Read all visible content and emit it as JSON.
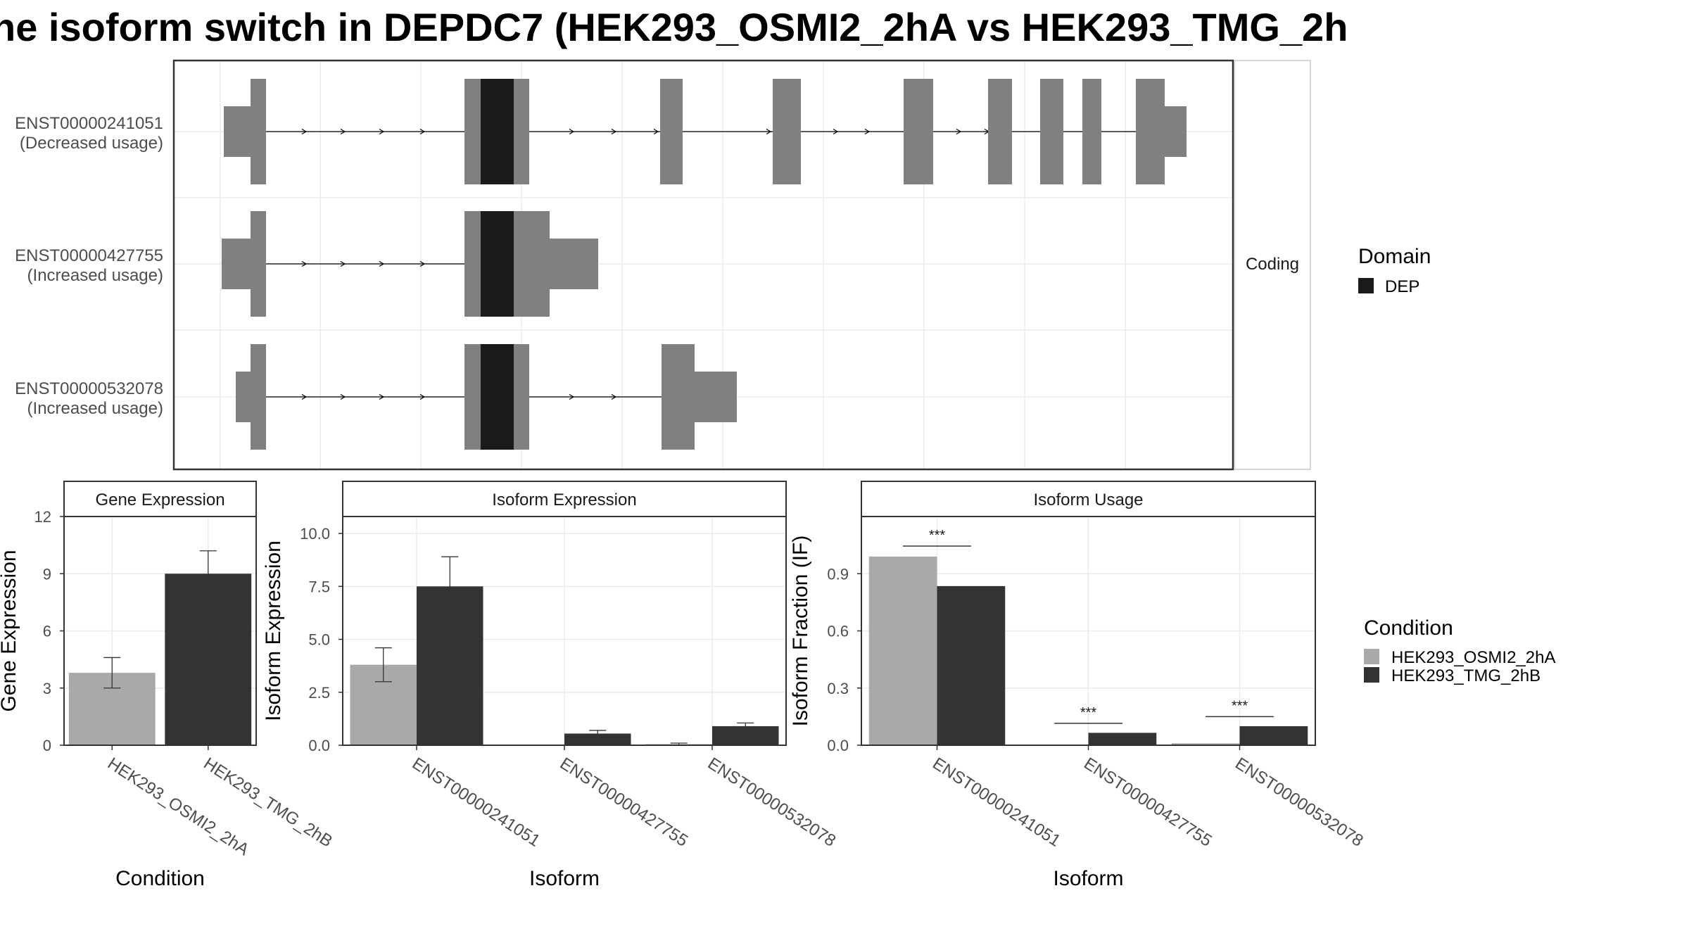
{
  "title": "he isoform switch in DEPDC7 (HEK293_OSMI2_2hA vs HEK293_TMG_2h",
  "colors": {
    "exon": "#808080",
    "domain": "#1a1a1a",
    "cond_a": "#a9a9a9",
    "cond_b": "#333333",
    "grid": "#ebebeb",
    "panel_border": "#333333",
    "strip_bg": "#ffffff"
  },
  "structure": {
    "strip_label": "Coding",
    "transcripts": [
      {
        "id": "ENST00000241051",
        "usage": "(Decreased usage)"
      },
      {
        "id": "ENST00000427755",
        "usage": "(Increased usage)"
      },
      {
        "id": "ENST00000532078",
        "usage": "(Increased usage)"
      }
    ],
    "domain_legend": {
      "title": "Domain",
      "items": [
        "DEP"
      ]
    }
  },
  "condition_legend": {
    "title": "Condition",
    "items": [
      "HEK293_OSMI2_2hA",
      "HEK293_TMG_2hB"
    ]
  },
  "chart_data": [
    {
      "type": "bar",
      "title": "Gene Expression",
      "xlabel": "Condition",
      "ylabel": "Gene Expression",
      "ylim": [
        0,
        12
      ],
      "yticks": [
        "0",
        "3",
        "6",
        "9",
        "12"
      ],
      "categories": [
        "HEK293_OSMI2_2hA",
        "HEK293_TMG_2hB"
      ],
      "values": [
        3.8,
        9.0
      ],
      "error": [
        [
          3.0,
          4.6
        ],
        [
          7.8,
          10.2
        ]
      ]
    },
    {
      "type": "bar",
      "title": "Isoform Expression",
      "xlabel": "Isoform",
      "ylabel": "Isoform Expression",
      "ylim": [
        0,
        10.8
      ],
      "yticks": [
        "0.0",
        "2.5",
        "5.0",
        "7.5",
        "10.0"
      ],
      "categories": [
        "ENST00000241051",
        "ENST00000427755",
        "ENST00000532078"
      ],
      "series": [
        {
          "name": "HEK293_OSMI2_2hA",
          "values": [
            3.8,
            0.0,
            0.05
          ],
          "error": [
            [
              3.0,
              4.6
            ],
            [
              0.0,
              0.0
            ],
            [
              0.0,
              0.1
            ]
          ]
        },
        {
          "name": "HEK293_TMG_2hB",
          "values": [
            7.5,
            0.55,
            0.9
          ],
          "error": [
            [
              6.2,
              8.9
            ],
            [
              0.45,
              0.7
            ],
            [
              0.75,
              1.05
            ]
          ]
        }
      ]
    },
    {
      "type": "bar",
      "title": "Isoform Usage",
      "xlabel": "Isoform",
      "ylabel": "Isoform Fraction (IF)",
      "ylim": [
        0,
        1.2
      ],
      "yticks": [
        "0.0",
        "0.3",
        "0.6",
        "0.9"
      ],
      "categories": [
        "ENST00000241051",
        "ENST00000427755",
        "ENST00000532078"
      ],
      "series": [
        {
          "name": "HEK293_OSMI2_2hA",
          "values": [
            0.99,
            0.0,
            0.01
          ]
        },
        {
          "name": "HEK293_TMG_2hB",
          "values": [
            0.835,
            0.065,
            0.1
          ]
        }
      ],
      "significance": [
        "***",
        "***",
        "***"
      ],
      "significance_y": [
        1.045,
        0.115,
        0.15
      ]
    }
  ]
}
